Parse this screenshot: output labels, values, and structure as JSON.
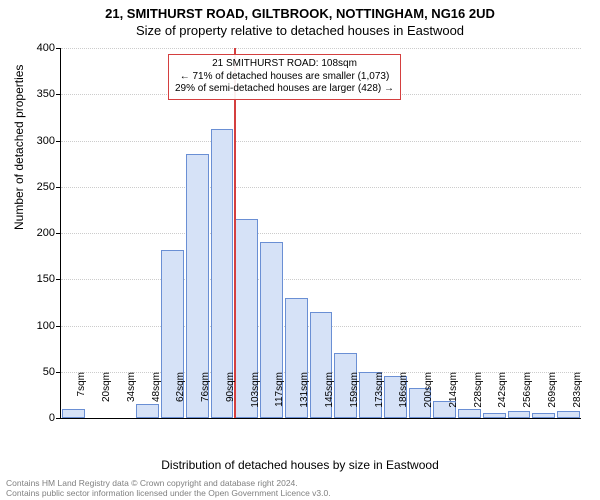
{
  "title_line1": "21, SMITHURST ROAD, GILTBROOK, NOTTINGHAM, NG16 2UD",
  "title_line2": "Size of property relative to detached houses in Eastwood",
  "ylabel": "Number of detached properties",
  "xlabel": "Distribution of detached houses by size in Eastwood",
  "chart": {
    "type": "histogram",
    "ylim": [
      0,
      400
    ],
    "ytick_step": 50,
    "bar_fill": "#d6e2f7",
    "bar_stroke": "#6a8fd4",
    "grid_color": "#cccccc",
    "background_color": "#ffffff",
    "marker_color": "#d43f3f",
    "marker_x_index": 7,
    "categories": [
      "7sqm",
      "20sqm",
      "34sqm",
      "48sqm",
      "62sqm",
      "76sqm",
      "90sqm",
      "103sqm",
      "117sqm",
      "131sqm",
      "145sqm",
      "159sqm",
      "173sqm",
      "186sqm",
      "200sqm",
      "214sqm",
      "228sqm",
      "242sqm",
      "256sqm",
      "269sqm",
      "283sqm"
    ],
    "values": [
      10,
      0,
      0,
      15,
      182,
      285,
      312,
      215,
      190,
      130,
      115,
      70,
      50,
      45,
      32,
      18,
      10,
      5,
      8,
      5,
      8
    ]
  },
  "annotation": {
    "line1": "21 SMITHURST ROAD: 108sqm",
    "line2": "← 71% of detached houses are smaller (1,073)",
    "line3": "29% of semi-detached houses are larger (428) →"
  },
  "footer": {
    "line1": "Contains HM Land Registry data © Crown copyright and database right 2024.",
    "line2": "Contains public sector information licensed under the Open Government Licence v3.0."
  }
}
